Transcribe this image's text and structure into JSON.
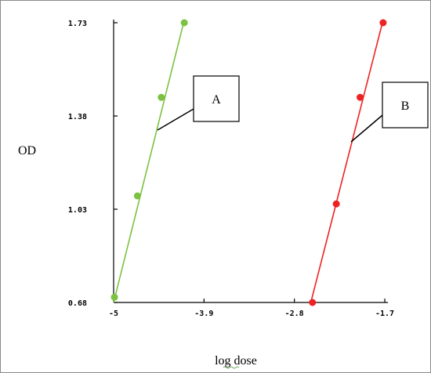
{
  "chart_data": {
    "type": "scatter",
    "title": "",
    "xlabel": "log dose",
    "ylabel": "OD",
    "xlim": [
      -5,
      -1.7
    ],
    "ylim": [
      0.68,
      1.73
    ],
    "x_ticks": [
      "-5",
      "-3.9",
      "-2.8",
      "-1.7"
    ],
    "y_ticks": [
      "0.68",
      "1.03",
      "1.38",
      "1.73"
    ],
    "grid": false,
    "series": [
      {
        "name": "A",
        "color": "#7cc142",
        "points": [
          {
            "x": -4.99,
            "y": 0.7
          },
          {
            "x": -4.71,
            "y": 1.08
          },
          {
            "x": -4.42,
            "y": 1.45
          },
          {
            "x": -4.14,
            "y": 1.73
          }
        ],
        "fit": [
          {
            "x": -5.0,
            "y": 0.68
          },
          {
            "x": -4.14,
            "y": 1.74
          }
        ]
      },
      {
        "name": "B",
        "color": "#ee2222",
        "points": [
          {
            "x": -2.58,
            "y": 0.68
          },
          {
            "x": -2.29,
            "y": 1.05
          },
          {
            "x": -2.0,
            "y": 1.45
          },
          {
            "x": -1.72,
            "y": 1.73
          }
        ],
        "fit": [
          {
            "x": -2.6,
            "y": 0.68
          },
          {
            "x": -1.72,
            "y": 1.74
          }
        ]
      }
    ]
  }
}
